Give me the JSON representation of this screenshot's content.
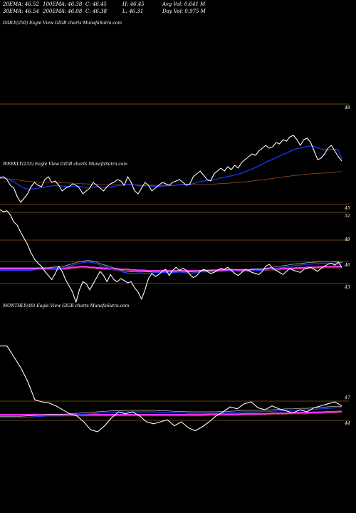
{
  "header": {
    "row1": [
      "20EMA: 46.52",
      "100EMA: 46.38",
      "C: 46.45",
      "H: 46.45",
      "Avg Vol: 0.641 M"
    ],
    "row2": [
      "30EMA: 46.54",
      "200EMA: 46.08",
      "C: 46.38",
      "L: 46.31",
      "Day Vol: 0.975 M"
    ]
  },
  "panels": {
    "daily_label": "DAILY(250) Eagle   View  GIGB charts MunafaSutra.com",
    "weekly_label": "WEEKLY(233) Eagle   View  GIGB charts MunafaSutra.com",
    "monthly_label": "MONTHLY(49) Eagle   View  GIGB charts MunafaSutra.com"
  },
  "colors": {
    "background": "#000000",
    "price": "#ffffff",
    "ema_short": "#1e3cff",
    "ema_long": "#ff33ff",
    "ema_mid": "#cccccc",
    "ema_slow": "#8b4513",
    "gridline": "#8b5a1a"
  },
  "chart_data": [
    {
      "name": "daily",
      "type": "line",
      "y_ticks": [
        "48",
        "45"
      ],
      "series": [
        {
          "role": "price",
          "values": [
            45.85,
            45.9,
            45.8,
            45.6,
            45.5,
            45.2,
            45.0,
            45.15,
            45.3,
            45.55,
            45.7,
            45.6,
            45.55,
            45.8,
            45.9,
            45.7,
            45.75,
            45.6,
            45.4,
            45.5,
            45.55,
            45.65,
            45.6,
            45.5,
            45.3,
            45.4,
            45.5,
            45.7,
            45.6,
            45.5,
            45.4,
            45.55,
            45.65,
            45.7,
            45.8,
            45.75,
            45.6,
            45.9,
            45.7,
            45.4,
            45.3,
            45.5,
            45.7,
            45.6,
            45.4,
            45.5,
            45.6,
            45.7,
            45.65,
            45.6,
            45.7,
            45.75,
            45.8,
            45.7,
            45.6,
            45.65,
            45.9,
            46.0,
            46.1,
            45.95,
            45.8,
            45.75,
            46.0,
            46.1,
            46.2,
            46.1,
            46.25,
            46.15,
            46.3,
            46.2,
            46.4,
            46.5,
            46.6,
            46.7,
            46.65,
            46.8,
            46.9,
            47.0,
            46.9,
            46.95,
            47.1,
            47.05,
            47.2,
            47.15,
            47.3,
            47.35,
            47.2,
            47.0,
            47.2,
            47.25,
            47.1,
            46.8,
            46.5,
            46.55,
            46.7,
            46.9,
            47.0,
            46.8,
            46.6,
            46.45
          ]
        },
        {
          "role": "ema20",
          "values": [
            45.9,
            45.88,
            45.84,
            45.78,
            45.72,
            45.64,
            45.56,
            45.5,
            45.47,
            45.47,
            45.48,
            45.5,
            45.51,
            45.53,
            45.56,
            45.58,
            45.59,
            45.59,
            45.57,
            45.56,
            45.56,
            45.57,
            45.57,
            45.56,
            45.54,
            45.52,
            45.52,
            45.54,
            45.55,
            45.54,
            45.53,
            45.53,
            45.54,
            45.56,
            45.58,
            45.6,
            45.6,
            45.63,
            45.64,
            45.61,
            45.58,
            45.57,
            45.58,
            45.59,
            45.57,
            45.56,
            45.56,
            45.57,
            45.58,
            45.58,
            45.59,
            45.6,
            45.62,
            45.63,
            45.63,
            45.63,
            45.66,
            45.69,
            45.73,
            45.75,
            45.76,
            45.77,
            45.79,
            45.82,
            45.86,
            45.88,
            45.91,
            45.93,
            45.96,
            45.98,
            46.02,
            46.07,
            46.12,
            46.17,
            46.22,
            46.28,
            46.34,
            46.41,
            46.46,
            46.51,
            46.57,
            46.62,
            46.68,
            46.73,
            46.79,
            46.85,
            46.88,
            46.9,
            46.93,
            46.96,
            46.98,
            46.96,
            46.91,
            46.87,
            46.85,
            46.85,
            46.86,
            46.86,
            46.84,
            46.52
          ]
        },
        {
          "role": "ema200",
          "values": [
            45.85,
            45.84,
            45.83,
            45.82,
            45.81,
            45.79,
            45.77,
            45.75,
            45.74,
            45.73,
            45.72,
            45.72,
            45.71,
            45.71,
            45.71,
            45.71,
            45.7,
            45.7,
            45.69,
            45.68,
            45.68,
            45.67,
            45.67,
            45.66,
            45.65,
            45.65,
            45.64,
            45.64,
            45.64,
            45.63,
            45.63,
            45.62,
            45.62,
            45.62,
            45.62,
            45.62,
            45.61,
            45.62,
            45.62,
            45.61,
            45.61,
            45.6,
            45.6,
            45.6,
            45.6,
            45.6,
            45.6,
            45.6,
            45.6,
            45.6,
            45.6,
            45.6,
            45.61,
            45.61,
            45.61,
            45.61,
            45.62,
            45.62,
            45.63,
            45.63,
            45.63,
            45.64,
            45.64,
            45.65,
            45.66,
            45.66,
            45.67,
            45.68,
            45.69,
            45.7,
            45.71,
            45.72,
            45.73,
            45.75,
            45.76,
            45.78,
            45.79,
            45.81,
            45.82,
            45.84,
            45.86,
            45.87,
            45.89,
            45.91,
            45.92,
            45.94,
            45.95,
            45.96,
            45.98,
            45.99,
            46.0,
            46.01,
            46.02,
            46.02,
            46.03,
            46.04,
            46.05,
            46.06,
            46.07,
            46.08
          ]
        }
      ]
    },
    {
      "name": "weekly",
      "type": "line",
      "y_ticks": [
        "52",
        "49",
        "46",
        "43"
      ],
      "series": [
        {
          "role": "price",
          "values": [
            52.0,
            51.8,
            51.9,
            51.5,
            50.8,
            50.5,
            49.8,
            49.2,
            48.6,
            47.8,
            47.2,
            46.8,
            46.5,
            46.0,
            45.6,
            45.2,
            45.8,
            46.5,
            46.0,
            45.2,
            44.6,
            44.0,
            43.0,
            44.2,
            45.0,
            44.8,
            44.2,
            44.8,
            45.4,
            46.0,
            45.6,
            45.0,
            45.7,
            45.2,
            45.0,
            45.3,
            45.1,
            44.9,
            45.0,
            44.4,
            44.0,
            43.3,
            44.2,
            45.3,
            45.8,
            45.5,
            45.7,
            46.0,
            46.2,
            45.6,
            46.1,
            46.4,
            46.1,
            46.3,
            46.1,
            45.7,
            45.4,
            45.6,
            46.0,
            46.2,
            46.0,
            45.8,
            45.9,
            46.1,
            46.3,
            46.2,
            46.4,
            46.1,
            45.8,
            45.6,
            45.9,
            46.2,
            46.1,
            45.9,
            45.8,
            45.7,
            46.0,
            46.5,
            46.7,
            46.3,
            46.1,
            45.9,
            45.7,
            46.0,
            46.3,
            46.1,
            46.0,
            45.9,
            46.2,
            46.3,
            46.4,
            46.2,
            46.0,
            46.3,
            46.5,
            46.7,
            46.8,
            46.6,
            46.9,
            46.4
          ]
        },
        {
          "role": "ema_short",
          "values": [
            46.1,
            46.1,
            46.1,
            46.1,
            46.1,
            46.1,
            46.1,
            46.1,
            46.1,
            46.1,
            46.15,
            46.2,
            46.2,
            46.2,
            46.2,
            46.25,
            46.3,
            46.3,
            46.35,
            46.4,
            46.5,
            46.6,
            46.7,
            46.8,
            46.85,
            46.9,
            46.9,
            46.85,
            46.75,
            46.6,
            46.5,
            46.4,
            46.3,
            46.2,
            46.1,
            46.0,
            45.9,
            45.85,
            45.8,
            45.8,
            45.85,
            45.85,
            45.8,
            45.8,
            45.85,
            45.9,
            45.9,
            45.9,
            45.9,
            45.85,
            45.85,
            45.9,
            45.95,
            45.9,
            45.85,
            45.8,
            45.85,
            45.9,
            45.95,
            45.95,
            45.95,
            45.95,
            46.0,
            46.0,
            46.0,
            46.0,
            46.05,
            46.05,
            46.05,
            46.0,
            46.0,
            46.0,
            46.0,
            46.05,
            46.1,
            46.1,
            46.1,
            46.15,
            46.2,
            46.25,
            46.3,
            46.35,
            46.4,
            46.45,
            46.5,
            46.55,
            46.6,
            46.6,
            46.65,
            46.7,
            46.7,
            46.75,
            46.75,
            46.8,
            46.8,
            46.8,
            46.8,
            46.75,
            46.75,
            46.7
          ]
        },
        {
          "role": "ema_long",
          "values": [
            46.3,
            46.3,
            46.3,
            46.3,
            46.3,
            46.3,
            46.3,
            46.3,
            46.3,
            46.3,
            46.3,
            46.3,
            46.3,
            46.3,
            46.3,
            46.3,
            46.3,
            46.3,
            46.3,
            46.3,
            46.35,
            46.4,
            46.4,
            46.45,
            46.45,
            46.45,
            46.4,
            46.4,
            46.35,
            46.35,
            46.3,
            46.3,
            46.3,
            46.25,
            46.25,
            46.2,
            46.2,
            46.2,
            46.15,
            46.15,
            46.1,
            46.1,
            46.1,
            46.05,
            46.05,
            46.05,
            46.05,
            46.05,
            46.05,
            46.05,
            46.05,
            46.05,
            46.05,
            46.05,
            46.05,
            46.05,
            46.05,
            46.05,
            46.05,
            46.1,
            46.1,
            46.1,
            46.1,
            46.1,
            46.1,
            46.15,
            46.15,
            46.15,
            46.15,
            46.15,
            46.15,
            46.15,
            46.15,
            46.2,
            46.2,
            46.2,
            46.2,
            46.2,
            46.25,
            46.25,
            46.25,
            46.25,
            46.3,
            46.3,
            46.3,
            46.3,
            46.35,
            46.35,
            46.35,
            46.4,
            46.4,
            46.4,
            46.4,
            46.45,
            46.45,
            46.45,
            46.45,
            46.45,
            46.45,
            46.45
          ]
        }
      ]
    },
    {
      "name": "monthly",
      "type": "line",
      "y_ticks": [
        "47",
        "44"
      ],
      "series": [
        {
          "role": "price",
          "values": [
            52.6,
            52.6,
            51.5,
            50.4,
            49.0,
            47.2,
            47.0,
            46.9,
            46.6,
            46.2,
            45.8,
            45.6,
            45.0,
            44.2,
            44.0,
            44.6,
            45.4,
            46.0,
            45.8,
            46.0,
            45.6,
            45.0,
            44.8,
            45.0,
            45.2,
            44.6,
            45.0,
            44.4,
            44.1,
            44.5,
            45.0,
            45.6,
            46.0,
            46.5,
            46.3,
            46.8,
            47.0,
            46.4,
            46.2,
            46.6,
            46.3,
            46.1,
            45.9,
            46.2,
            46.0,
            46.4,
            46.6,
            46.8,
            47.0,
            46.6
          ]
        },
        {
          "role": "ema_short",
          "values": [
            45.4,
            45.4,
            45.4,
            45.4,
            45.45,
            45.5,
            45.55,
            45.6,
            45.6,
            45.6,
            45.65,
            45.7,
            45.75,
            45.8,
            45.85,
            45.9,
            45.95,
            45.95,
            46.0,
            46.0,
            46.0,
            46.0,
            46.0,
            45.95,
            45.95,
            45.9,
            45.9,
            45.85,
            45.85,
            45.85,
            45.85,
            45.85,
            45.9,
            45.9,
            45.95,
            46.0,
            46.0,
            46.0,
            46.05,
            46.05,
            46.1,
            46.15,
            46.15,
            46.2,
            46.2,
            46.25,
            46.3,
            46.35,
            46.4,
            46.4
          ]
        },
        {
          "role": "ema_long",
          "values": [
            45.7,
            45.7,
            45.7,
            45.7,
            45.7,
            45.7,
            45.7,
            45.7,
            45.7,
            45.7,
            45.7,
            45.7,
            45.7,
            45.7,
            45.7,
            45.7,
            45.7,
            45.7,
            45.7,
            45.7,
            45.7,
            45.7,
            45.7,
            45.7,
            45.7,
            45.7,
            45.7,
            45.7,
            45.7,
            45.7,
            45.75,
            45.75,
            45.75,
            45.75,
            45.75,
            45.8,
            45.8,
            45.8,
            45.8,
            45.85,
            45.85,
            45.85,
            45.9,
            45.9,
            45.9,
            45.95,
            45.95,
            46.0,
            46.0,
            46.05
          ]
        }
      ]
    }
  ]
}
